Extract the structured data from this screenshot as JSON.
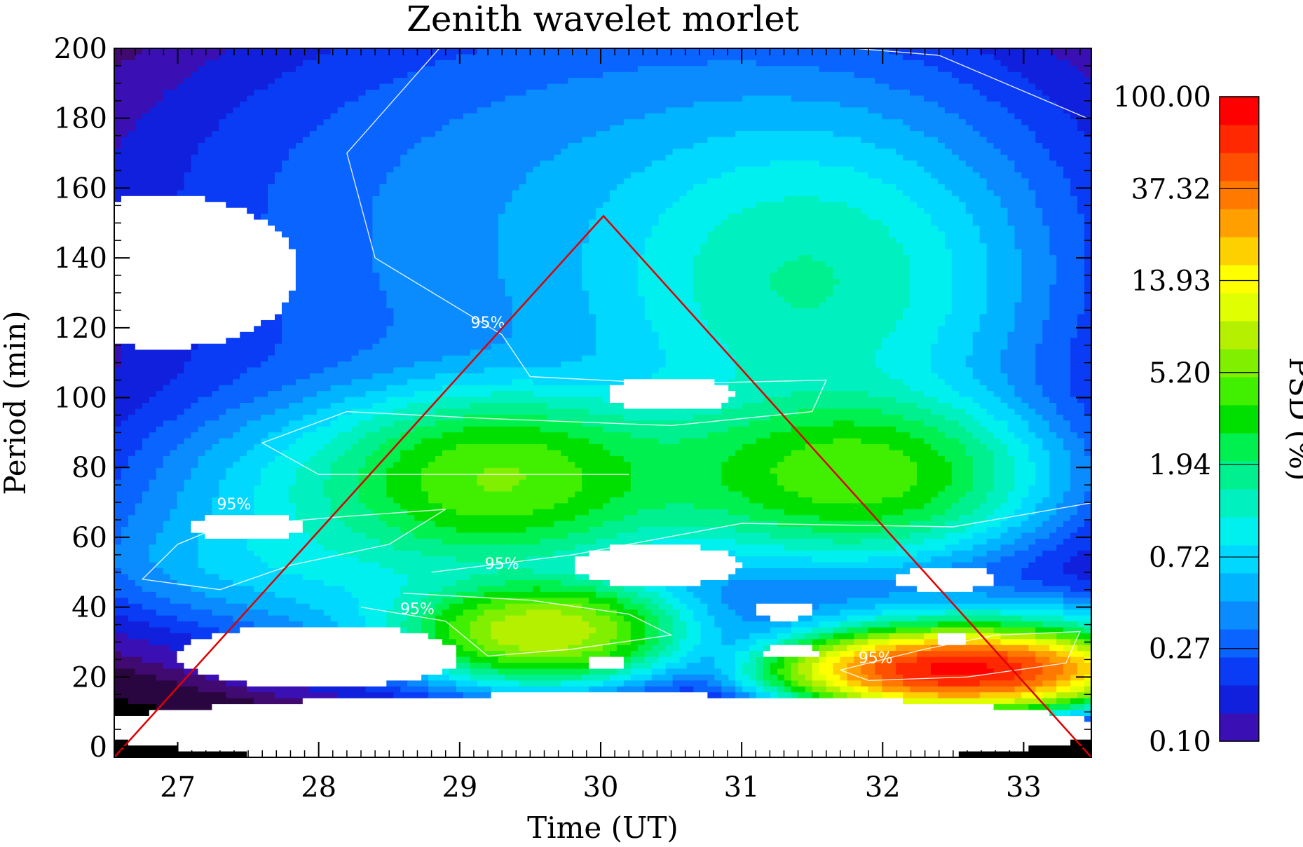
{
  "chart_data": {
    "type": "heatmap",
    "title": "Zenith wavelet morlet",
    "xlabel": "Time (UT)",
    "ylabel": "Period (min)",
    "xlim": [
      26.55,
      33.48
    ],
    "ylim": [
      -3,
      200
    ],
    "x_ticks": [
      27,
      28,
      29,
      30,
      31,
      32,
      33
    ],
    "y_ticks": [
      0,
      20,
      40,
      60,
      80,
      100,
      120,
      140,
      160,
      180,
      200
    ],
    "colorbar": {
      "label": "PSD (%)",
      "scale": "log",
      "range": [
        0.1,
        100
      ],
      "tick_labels": [
        "100.00",
        "37.32",
        "13.93",
        "5.20",
        "1.94",
        "0.72",
        "0.27",
        "0.10"
      ],
      "tick_values": [
        100.0,
        37.32,
        13.93,
        5.2,
        1.94,
        0.72,
        0.27,
        0.1
      ],
      "colors": [
        "#3a10b4",
        "#1020dc",
        "#0a3cf5",
        "#0a64ff",
        "#0a8cff",
        "#00b4ff",
        "#00d8ff",
        "#00f0f0",
        "#00f0c0",
        "#00f090",
        "#00f050",
        "#00e000",
        "#40f000",
        "#80f000",
        "#b4f000",
        "#e0ff00",
        "#ffff00",
        "#ffd000",
        "#ffa000",
        "#ff7800",
        "#ff5000",
        "#ff2800",
        "#ff0000"
      ]
    },
    "contour_levels": [
      "95%",
      "95%",
      "95%",
      "95%",
      "95%",
      "95%"
    ],
    "cone_of_influence": {
      "color": "#e00000",
      "points": [
        [
          26.55,
          -3
        ],
        [
          30.02,
          152
        ],
        [
          33.48,
          -3
        ]
      ]
    },
    "blobs": [
      {
        "t": 29.25,
        "p": 77,
        "st": 0.55,
        "sp": 12,
        "psd": 3.2
      },
      {
        "t": 31.85,
        "p": 78,
        "st": 0.6,
        "sp": 12,
        "psd": 3.5
      },
      {
        "t": 30.5,
        "p": 78,
        "st": 1.3,
        "sp": 13,
        "psd": 1.4
      },
      {
        "t": 28.7,
        "p": 72,
        "st": 1.0,
        "sp": 16,
        "psd": 0.9
      },
      {
        "t": 27.6,
        "p": 52,
        "st": 0.8,
        "sp": 10,
        "psd": 0.35
      },
      {
        "t": 31.5,
        "p": 132,
        "st": 0.8,
        "sp": 25,
        "psd": 1.1
      },
      {
        "t": 31.1,
        "p": 140,
        "st": 1.9,
        "sp": 50,
        "psd": 0.3
      },
      {
        "t": 29.6,
        "p": 33,
        "st": 0.45,
        "sp": 7,
        "psd": 8.0
      },
      {
        "t": 29.3,
        "p": 35,
        "st": 0.8,
        "sp": 10,
        "psd": 0.8
      },
      {
        "t": 32.55,
        "p": 22,
        "st": 0.5,
        "sp": 4.5,
        "psd": 80.0
      },
      {
        "t": 32.7,
        "p": 26,
        "st": 0.75,
        "sp": 8,
        "psd": 3.0
      },
      {
        "t": 29.0,
        "p": 120,
        "st": 2.2,
        "sp": 60,
        "psd": 0.15
      },
      {
        "t": 30.0,
        "p": 50,
        "st": 3.5,
        "sp": 30,
        "psd": 0.14
      },
      {
        "t": 29.7,
        "p": 170,
        "st": 2.6,
        "sp": 40,
        "psd": 0.13
      }
    ],
    "holes": [
      {
        "t": 30.5,
        "p": 101,
        "rt": 0.45,
        "rp": 5
      },
      {
        "t": 27.5,
        "p": 63,
        "rt": 0.4,
        "rp": 4
      },
      {
        "t": 30.4,
        "p": 52,
        "rt": 0.6,
        "rp": 6
      },
      {
        "t": 31.3,
        "p": 39,
        "rt": 0.22,
        "rp": 2.5
      },
      {
        "t": 32.45,
        "p": 48,
        "rt": 0.35,
        "rp": 3.5
      },
      {
        "t": 31.35,
        "p": 27,
        "rt": 0.18,
        "rp": 2
      },
      {
        "t": 30.05,
        "p": 24,
        "rt": 0.14,
        "rp": 2
      },
      {
        "t": 32.5,
        "p": 31,
        "rt": 0.12,
        "rp": 1.5
      },
      {
        "t": 26.9,
        "p": 136,
        "rt": 0.95,
        "rp": 22
      },
      {
        "t": 28.0,
        "p": 26,
        "rt": 1.0,
        "rp": 9
      },
      {
        "t": 30.0,
        "p": 5,
        "rt": 3.6,
        "rp": 10
      }
    ]
  }
}
